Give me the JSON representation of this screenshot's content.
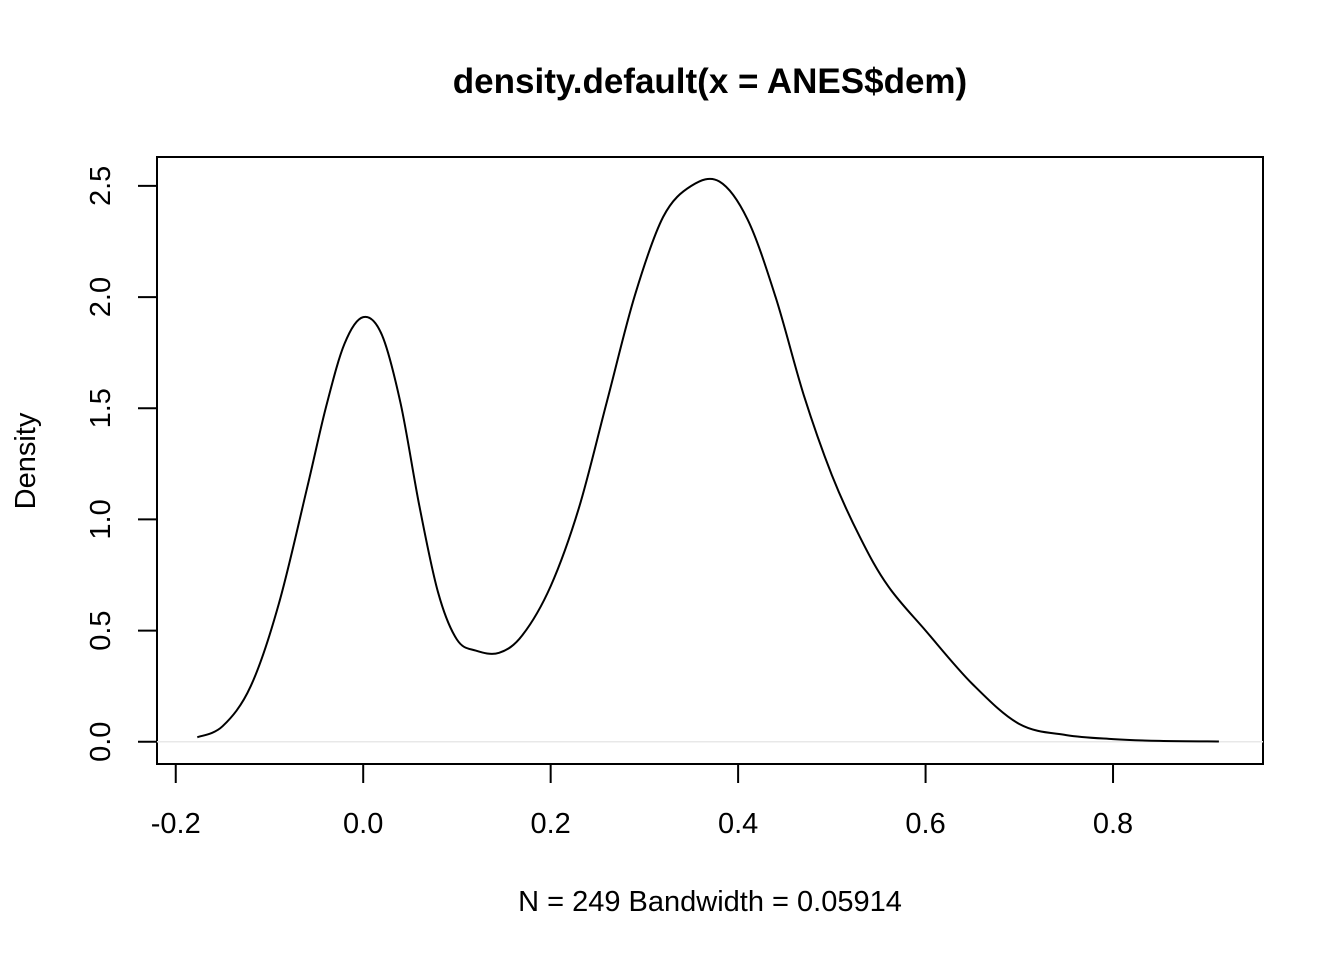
{
  "chart_data": {
    "type": "line",
    "title": "density.default(x = ANES$dem)",
    "xlabel": "N = 249   Bandwidth = 0.05914",
    "ylabel": "Density",
    "xlim": [
      -0.22,
      0.96
    ],
    "ylim": [
      -0.1,
      2.63
    ],
    "x_ticks": [
      -0.2,
      0.0,
      0.2,
      0.4,
      0.6,
      0.8
    ],
    "x_tick_labels": [
      "-0.2",
      "0.0",
      "0.2",
      "0.4",
      "0.6",
      "0.8"
    ],
    "y_ticks": [
      0.0,
      0.5,
      1.0,
      1.5,
      2.0,
      2.5
    ],
    "y_tick_labels": [
      "0.0",
      "0.5",
      "1.0",
      "1.5",
      "2.0",
      "2.5"
    ],
    "grid": false,
    "zero_line": true,
    "series": [
      {
        "color": "#000000",
        "x": [
          -0.177,
          -0.15,
          -0.12,
          -0.09,
          -0.06,
          -0.04,
          -0.02,
          0.0,
          0.02,
          0.04,
          0.06,
          0.08,
          0.1,
          0.12,
          0.145,
          0.17,
          0.2,
          0.23,
          0.26,
          0.29,
          0.32,
          0.35,
          0.38,
          0.41,
          0.44,
          0.47,
          0.5,
          0.53,
          0.56,
          0.6,
          0.65,
          0.7,
          0.75,
          0.8,
          0.85,
          0.913
        ],
        "y": [
          0.02,
          0.07,
          0.25,
          0.62,
          1.14,
          1.5,
          1.79,
          1.91,
          1.83,
          1.52,
          1.06,
          0.67,
          0.46,
          0.41,
          0.4,
          0.48,
          0.7,
          1.05,
          1.53,
          2.01,
          2.36,
          2.5,
          2.52,
          2.35,
          2.0,
          1.56,
          1.2,
          0.92,
          0.7,
          0.5,
          0.26,
          0.08,
          0.03,
          0.012,
          0.004,
          0.001
        ]
      }
    ]
  }
}
